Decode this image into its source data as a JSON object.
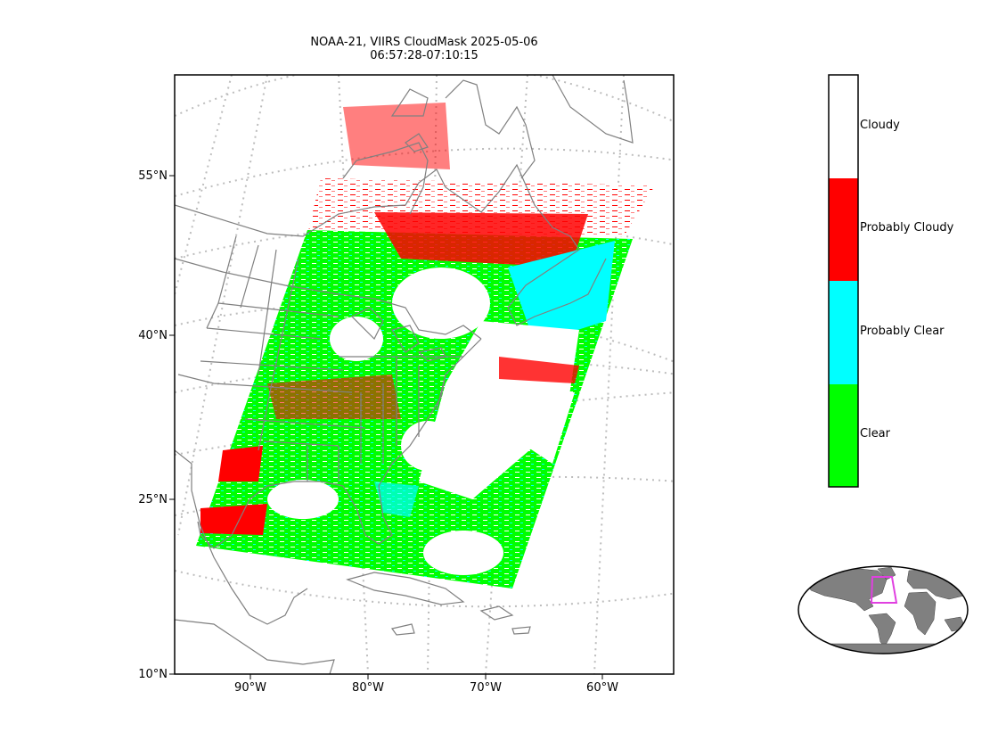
{
  "title": {
    "line1": "NOAA-21, VIIRS CloudMask 2025-05-06",
    "line2": "06:57:28-07:10:15"
  },
  "axes": {
    "lat_ticks": [
      "55°N",
      "40°N",
      "25°N",
      "10°N"
    ],
    "lon_ticks": [
      "90°W",
      "80°W",
      "70°W",
      "60°W"
    ]
  },
  "colorbar": {
    "categories": [
      {
        "label": "Cloudy",
        "color": "#ffffff"
      },
      {
        "label": "Probably Cloudy",
        "color": "#ff0000"
      },
      {
        "label": "Probably Clear",
        "color": "#00ffff"
      },
      {
        "label": "Clear",
        "color": "#00ff00"
      }
    ]
  },
  "colors": {
    "coastline": "#808080",
    "graticule": "#bdbdbd",
    "inset_land": "#808080",
    "inset_box": "#e040e0"
  }
}
